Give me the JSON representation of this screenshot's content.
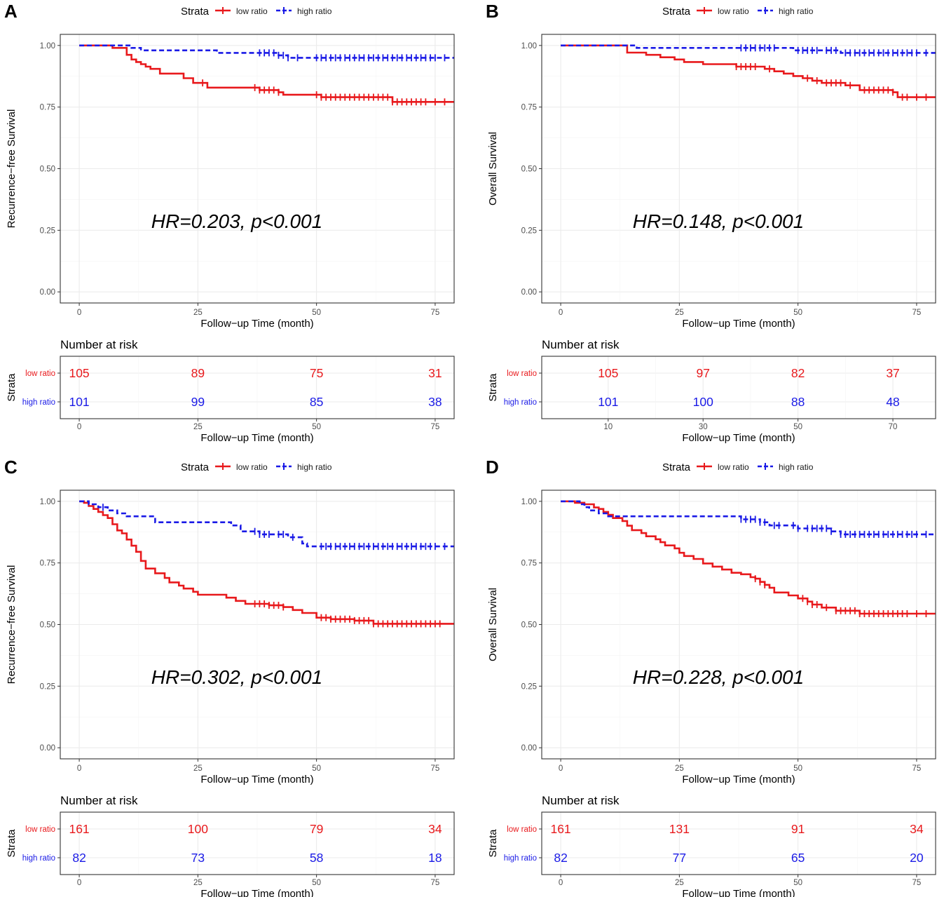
{
  "figure": {
    "colors": {
      "low": "#e8191c",
      "high": "#1a1ae6",
      "grid": "#ebebeb",
      "border": "#333333",
      "axis_text": "#4d4d4d"
    },
    "common": {
      "legend_title": "Strata",
      "low_label": "low ratio",
      "high_label": "high ratio",
      "xlabel": "Follow−up Time (month)",
      "risk_title": "Number at risk",
      "risk_ylabel": "Strata",
      "y_ticks": [
        "0.00",
        "0.25",
        "0.50",
        "0.75",
        "1.00"
      ]
    }
  },
  "chart_data": [
    {
      "type": "line",
      "panel_label": "A",
      "ylabel": "Recurrence−free Survival",
      "annotation": "HR=0.203, p<0.001",
      "xlim": [
        -4,
        79
      ],
      "ylim": [
        -0.045,
        1.045
      ],
      "x_ticks": [
        0,
        25,
        50,
        75
      ],
      "series": [
        {
          "name": "low ratio",
          "steps": [
            [
              0,
              1
            ],
            [
              7,
              0.99
            ],
            [
              10,
              0.962
            ],
            [
              11,
              0.943
            ],
            [
              12,
              0.933
            ],
            [
              13,
              0.924
            ],
            [
              14,
              0.914
            ],
            [
              15,
              0.905
            ],
            [
              17,
              0.886
            ],
            [
              22,
              0.867
            ],
            [
              24,
              0.848
            ],
            [
              27,
              0.829
            ],
            [
              38,
              0.819
            ],
            [
              42,
              0.81
            ],
            [
              43,
              0.8
            ],
            [
              51,
              0.79
            ],
            [
              66,
              0.771
            ],
            [
              79,
              0.771
            ]
          ],
          "censored": [
            26,
            37,
            38,
            39,
            40,
            41,
            42,
            50,
            51,
            52,
            53,
            54,
            55,
            56,
            57,
            58,
            59,
            60,
            61,
            62,
            63,
            64,
            65,
            66,
            67,
            68,
            69,
            70,
            71,
            72,
            73,
            75,
            77
          ]
        },
        {
          "name": "high ratio",
          "steps": [
            [
              0,
              1
            ],
            [
              11,
              0.99
            ],
            [
              13,
              0.98
            ],
            [
              29,
              0.97
            ],
            [
              42,
              0.96
            ],
            [
              44,
              0.95
            ],
            [
              79,
              0.95
            ]
          ],
          "censored": [
            38,
            39,
            40,
            41,
            42,
            43,
            44,
            46,
            50,
            51,
            52,
            53,
            54,
            55,
            56,
            57,
            58,
            59,
            60,
            61,
            62,
            63,
            64,
            65,
            66,
            67,
            68,
            69,
            70,
            71,
            72,
            73,
            74,
            75,
            77
          ]
        }
      ],
      "risk_ticks": [
        0,
        25,
        50,
        75
      ],
      "risk": {
        "low": [
          "105",
          "89",
          "75",
          "31"
        ],
        "high": [
          "101",
          "99",
          "85",
          "38"
        ]
      }
    },
    {
      "type": "line",
      "panel_label": "B",
      "ylabel": "Overall Survival",
      "annotation": "HR=0.148, p<0.001",
      "xlim": [
        -4,
        79
      ],
      "ylim": [
        -0.045,
        1.045
      ],
      "x_ticks": [
        0,
        25,
        50,
        75
      ],
      "series": [
        {
          "name": "low ratio",
          "steps": [
            [
              0,
              1
            ],
            [
              14,
              0.971
            ],
            [
              18,
              0.962
            ],
            [
              21,
              0.952
            ],
            [
              24,
              0.943
            ],
            [
              26,
              0.933
            ],
            [
              30,
              0.924
            ],
            [
              37,
              0.914
            ],
            [
              43,
              0.905
            ],
            [
              45,
              0.895
            ],
            [
              47,
              0.886
            ],
            [
              49,
              0.876
            ],
            [
              51,
              0.867
            ],
            [
              53,
              0.857
            ],
            [
              55,
              0.848
            ],
            [
              60,
              0.838
            ],
            [
              63,
              0.819
            ],
            [
              70,
              0.81
            ],
            [
              71,
              0.79
            ],
            [
              79,
              0.79
            ]
          ],
          "censored": [
            37,
            38,
            39,
            40,
            41,
            44,
            52,
            54,
            56,
            57,
            58,
            59,
            61,
            64,
            65,
            66,
            67,
            68,
            69,
            70,
            72,
            73,
            75,
            77
          ]
        },
        {
          "name": "high ratio",
          "steps": [
            [
              0,
              1
            ],
            [
              16,
              0.99
            ],
            [
              38,
              0.99
            ],
            [
              49,
              0.98
            ],
            [
              59,
              0.97
            ],
            [
              79,
              0.97
            ]
          ],
          "censored": [
            38,
            39,
            40,
            41,
            42,
            43,
            44,
            45,
            50,
            51,
            52,
            53,
            54,
            56,
            57,
            58,
            60,
            61,
            62,
            63,
            64,
            65,
            66,
            67,
            68,
            69,
            70,
            71,
            72,
            73,
            74,
            75,
            77
          ]
        }
      ],
      "risk_ticks": [
        10,
        30,
        50,
        70
      ],
      "risk": {
        "low": [
          "105",
          "97",
          "82",
          "37"
        ],
        "high": [
          "101",
          "100",
          "88",
          "48"
        ]
      }
    },
    {
      "type": "line",
      "panel_label": "C",
      "ylabel": "Recurrence−free Survival",
      "annotation": "HR=0.302, p<0.001",
      "xlim": [
        -4,
        79
      ],
      "ylim": [
        -0.045,
        1.045
      ],
      "x_ticks": [
        0,
        25,
        50,
        75
      ],
      "series": [
        {
          "name": "low ratio",
          "steps": [
            [
              0,
              1
            ],
            [
              1,
              0.994
            ],
            [
              2,
              0.981
            ],
            [
              3,
              0.969
            ],
            [
              4,
              0.957
            ],
            [
              5,
              0.944
            ],
            [
              6,
              0.932
            ],
            [
              7,
              0.907
            ],
            [
              8,
              0.882
            ],
            [
              9,
              0.87
            ],
            [
              10,
              0.845
            ],
            [
              11,
              0.82
            ],
            [
              12,
              0.795
            ],
            [
              13,
              0.758
            ],
            [
              14,
              0.727
            ],
            [
              16,
              0.708
            ],
            [
              18,
              0.689
            ],
            [
              19,
              0.671
            ],
            [
              21,
              0.658
            ],
            [
              22,
              0.646
            ],
            [
              24,
              0.633
            ],
            [
              25,
              0.621
            ],
            [
              31,
              0.609
            ],
            [
              33,
              0.596
            ],
            [
              35,
              0.584
            ],
            [
              40,
              0.578
            ],
            [
              43,
              0.571
            ],
            [
              45,
              0.559
            ],
            [
              47,
              0.547
            ],
            [
              50,
              0.528
            ],
            [
              53,
              0.522
            ],
            [
              58,
              0.516
            ],
            [
              62,
              0.503
            ],
            [
              79,
              0.503
            ]
          ],
          "censored": [
            37,
            38,
            39,
            40,
            41,
            42,
            43,
            51,
            52,
            53,
            54,
            55,
            56,
            57,
            58,
            59,
            60,
            61,
            62,
            63,
            64,
            65,
            66,
            67,
            68,
            69,
            70,
            71,
            72,
            73,
            74,
            75,
            76
          ]
        },
        {
          "name": "high ratio",
          "steps": [
            [
              0,
              1
            ],
            [
              2,
              0.988
            ],
            [
              4,
              0.976
            ],
            [
              6,
              0.963
            ],
            [
              8,
              0.951
            ],
            [
              10,
              0.939
            ],
            [
              16,
              0.915
            ],
            [
              32,
              0.902
            ],
            [
              34,
              0.878
            ],
            [
              38,
              0.866
            ],
            [
              44,
              0.854
            ],
            [
              47,
              0.829
            ],
            [
              48,
              0.817
            ],
            [
              79,
              0.817
            ]
          ],
          "censored": [
            5,
            37,
            38,
            39,
            40,
            42,
            43,
            45,
            51,
            52,
            53,
            54,
            55,
            56,
            57,
            58,
            59,
            60,
            61,
            62,
            63,
            64,
            65,
            66,
            67,
            68,
            69,
            70,
            71,
            72,
            73,
            74,
            75,
            77
          ]
        }
      ],
      "risk_ticks": [
        0,
        25,
        50,
        75
      ],
      "risk": {
        "low": [
          "161",
          "100",
          "79",
          "34"
        ],
        "high": [
          "82",
          "73",
          "58",
          "18"
        ]
      }
    },
    {
      "type": "line",
      "panel_label": "D",
      "ylabel": "Overall Survival",
      "annotation": "HR=0.228, p<0.001",
      "xlim": [
        -4,
        79
      ],
      "ylim": [
        -0.045,
        1.045
      ],
      "x_ticks": [
        0,
        25,
        50,
        75
      ],
      "series": [
        {
          "name": "low ratio",
          "steps": [
            [
              0,
              1
            ],
            [
              3,
              0.994
            ],
            [
              5,
              0.988
            ],
            [
              7,
              0.975
            ],
            [
              8,
              0.969
            ],
            [
              9,
              0.957
            ],
            [
              10,
              0.945
            ],
            [
              11,
              0.932
            ],
            [
              13,
              0.92
            ],
            [
              14,
              0.901
            ],
            [
              15,
              0.883
            ],
            [
              17,
              0.871
            ],
            [
              18,
              0.858
            ],
            [
              20,
              0.846
            ],
            [
              21,
              0.834
            ],
            [
              22,
              0.821
            ],
            [
              24,
              0.809
            ],
            [
              25,
              0.791
            ],
            [
              26,
              0.778
            ],
            [
              28,
              0.766
            ],
            [
              30,
              0.748
            ],
            [
              32,
              0.735
            ],
            [
              34,
              0.723
            ],
            [
              36,
              0.71
            ],
            [
              38,
              0.704
            ],
            [
              40,
              0.692
            ],
            [
              41,
              0.686
            ],
            [
              42,
              0.673
            ],
            [
              43,
              0.661
            ],
            [
              44,
              0.649
            ],
            [
              45,
              0.63
            ],
            [
              48,
              0.618
            ],
            [
              50,
              0.606
            ],
            [
              52,
              0.593
            ],
            [
              53,
              0.581
            ],
            [
              55,
              0.569
            ],
            [
              58,
              0.556
            ],
            [
              63,
              0.544
            ],
            [
              79,
              0.544
            ]
          ],
          "censored": [
            41,
            42,
            43,
            51,
            52,
            53,
            54,
            56,
            58,
            59,
            60,
            61,
            62,
            63,
            64,
            65,
            66,
            67,
            68,
            69,
            70,
            71,
            72,
            73,
            75,
            77
          ]
        },
        {
          "name": "high ratio",
          "steps": [
            [
              0,
              1
            ],
            [
              4,
              0.988
            ],
            [
              5,
              0.976
            ],
            [
              6,
              0.963
            ],
            [
              8,
              0.951
            ],
            [
              10,
              0.939
            ],
            [
              38,
              0.927
            ],
            [
              42,
              0.915
            ],
            [
              44,
              0.902
            ],
            [
              50,
              0.89
            ],
            [
              57,
              0.878
            ],
            [
              59,
              0.866
            ],
            [
              79,
              0.866
            ]
          ],
          "censored": [
            38,
            39,
            40,
            41,
            42,
            43,
            45,
            46,
            49,
            50,
            52,
            53,
            54,
            55,
            56,
            57,
            59,
            60,
            61,
            62,
            63,
            64,
            65,
            66,
            67,
            68,
            69,
            70,
            71,
            72,
            73,
            74,
            75,
            77
          ]
        }
      ],
      "risk_ticks": [
        0,
        25,
        50,
        75
      ],
      "risk": {
        "low": [
          "161",
          "131",
          "91",
          "34"
        ],
        "high": [
          "82",
          "77",
          "65",
          "20"
        ]
      }
    }
  ]
}
